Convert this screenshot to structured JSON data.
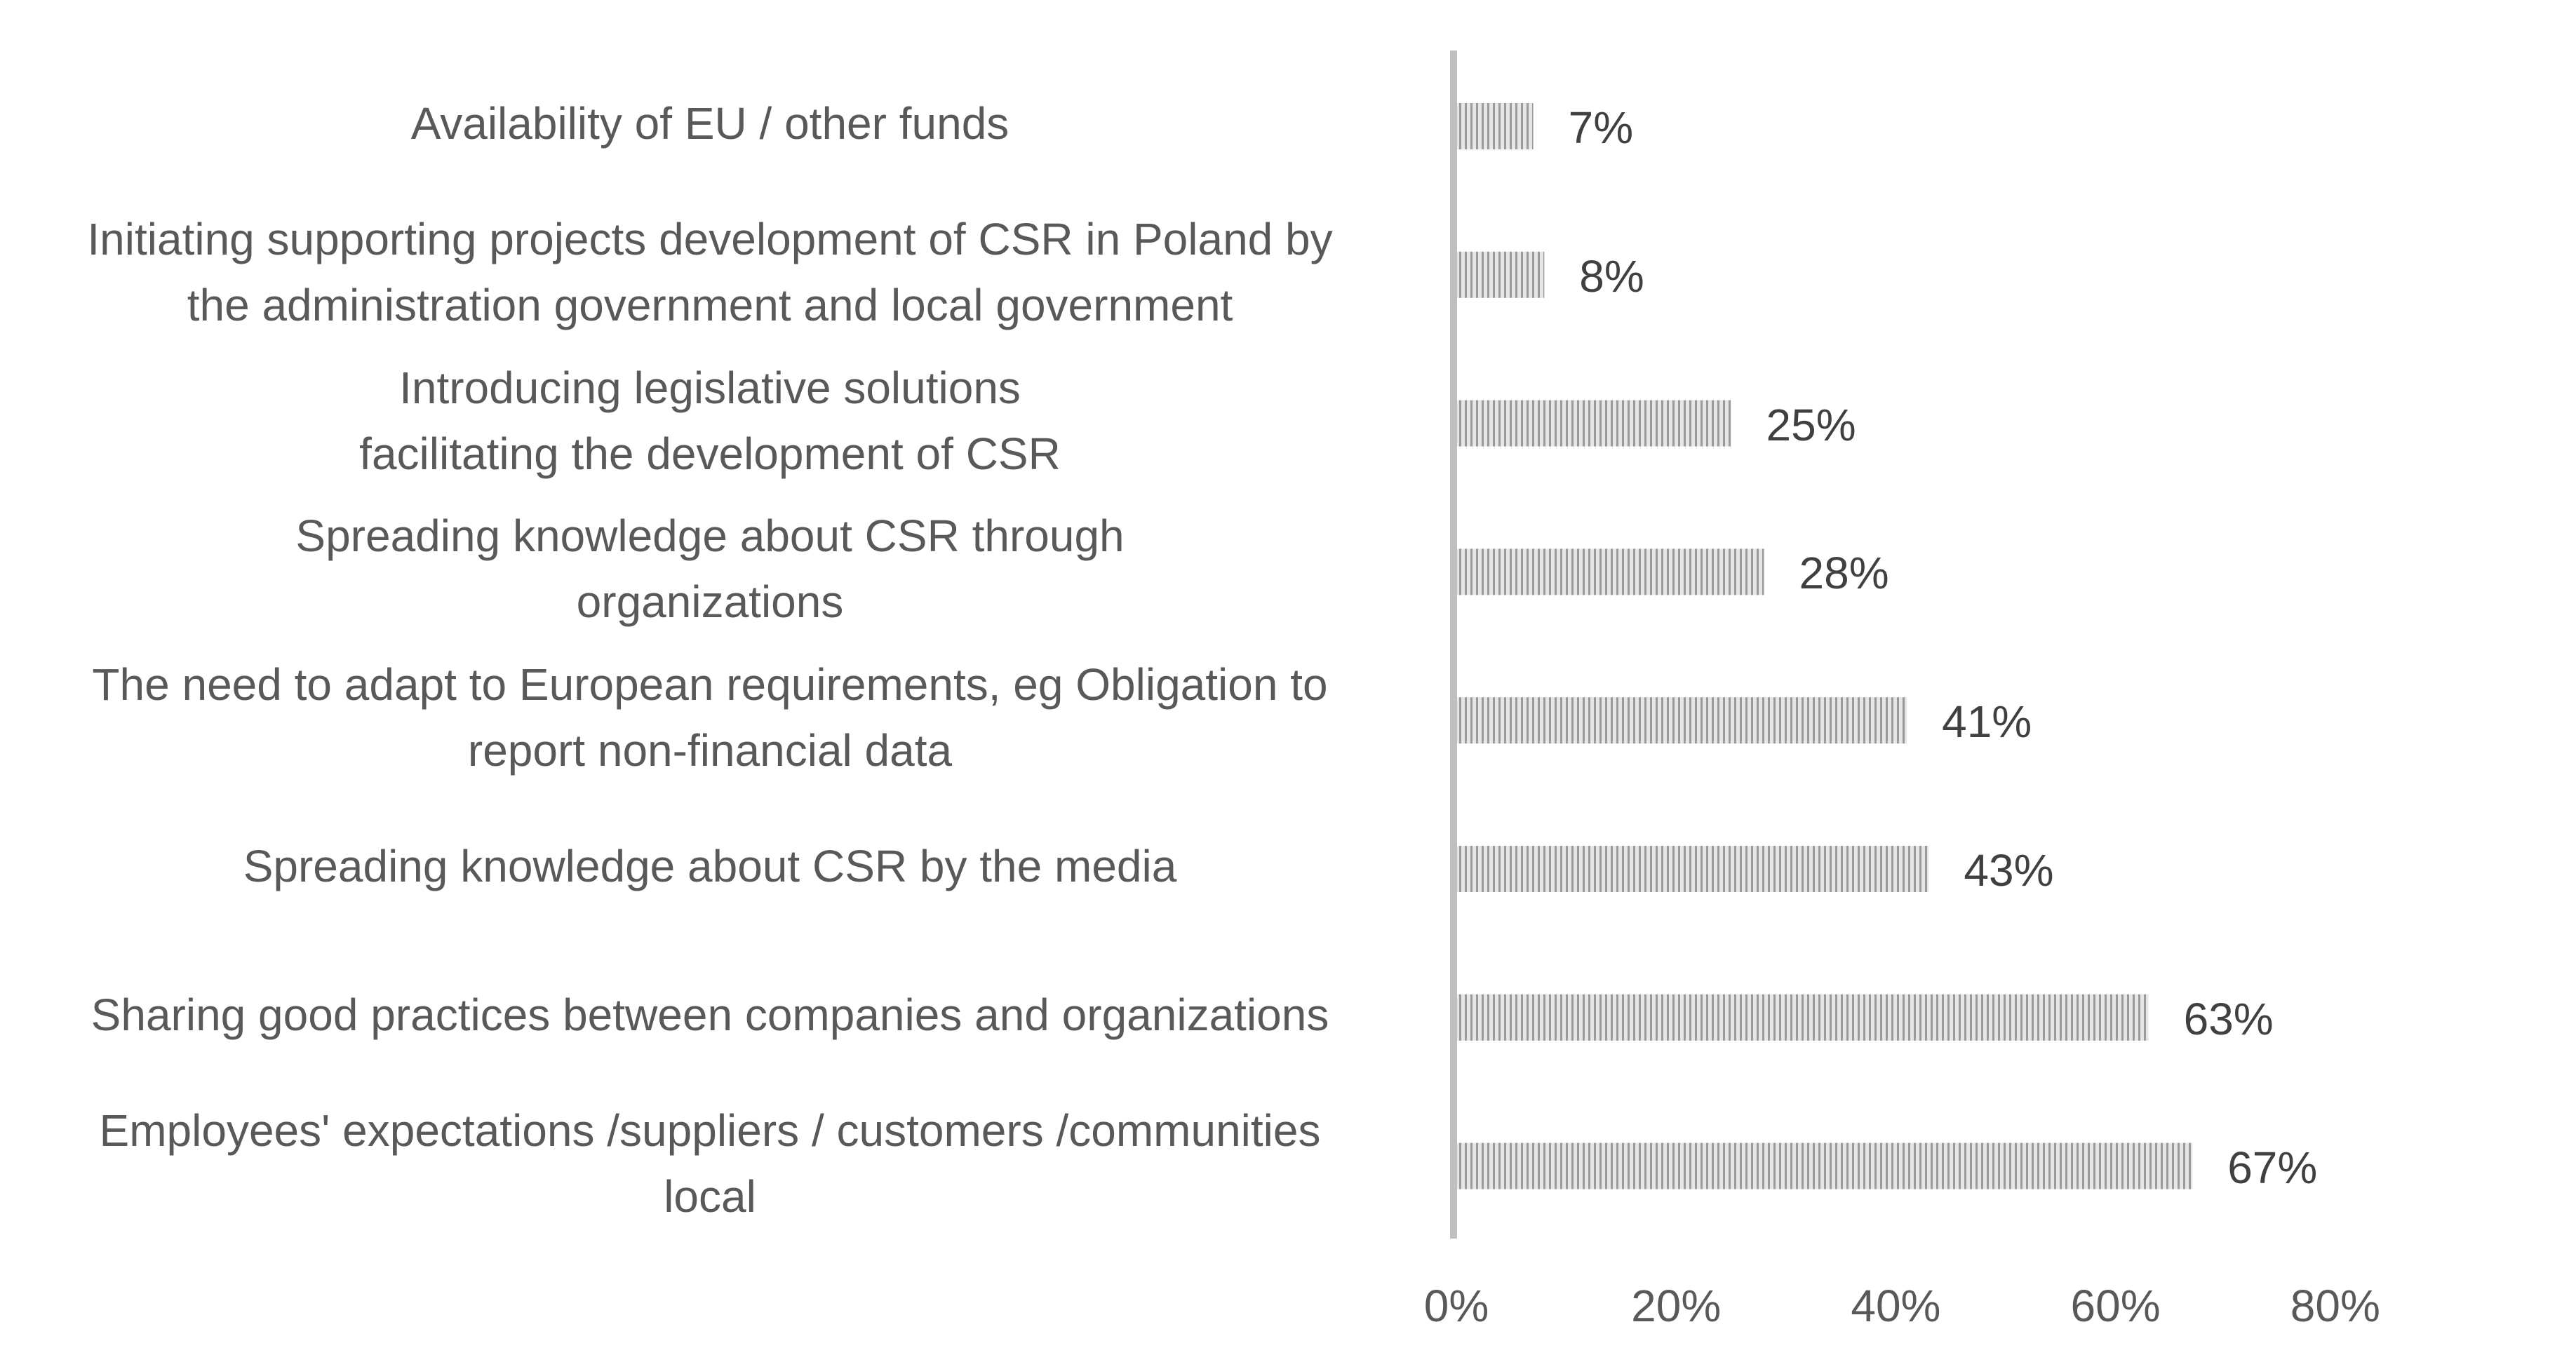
{
  "chart_data": {
    "type": "bar",
    "orientation": "horizontal",
    "categories": [
      "Availability of EU / other funds",
      "Initiating supporting projects development of CSR in Poland by the administration government and local government",
      "Introducing legislative solutions facilitating the development of CSR",
      "Spreading knowledge about CSR through organizations",
      "The need to adapt to European requirements, eg Obligation to report non-financial data",
      "Spreading knowledge about CSR by the media",
      "Sharing good practices between companies and organizations",
      "Employees' expectations /suppliers / customers /communities local"
    ],
    "category_lines": [
      [
        "Availability of EU / other funds"
      ],
      [
        "Initiating supporting projects development of CSR in Poland by",
        "the administration government and local government"
      ],
      [
        "Introducing legislative solutions",
        "facilitating the development of CSR"
      ],
      [
        "Spreading knowledge about CSR through",
        "organizations"
      ],
      [
        "The need to adapt to European requirements, eg Obligation to",
        "report non-financial data"
      ],
      [
        "Spreading knowledge about CSR by the media"
      ],
      [
        "Sharing good practices between companies and organizations"
      ],
      [
        "Employees' expectations /suppliers / customers /communities",
        "local"
      ]
    ],
    "values": [
      7,
      8,
      25,
      28,
      41,
      43,
      63,
      67
    ],
    "data_labels": [
      "7%",
      "8%",
      "25%",
      "28%",
      "41%",
      "43%",
      "63%",
      "67%"
    ],
    "x_ticks": [
      0,
      20,
      40,
      60,
      80
    ],
    "x_tick_labels": [
      "0%",
      "20%",
      "40%",
      "60%",
      "80%"
    ],
    "xlim": [
      0,
      80
    ],
    "title": "",
    "xlabel": "",
    "ylabel": "",
    "grid": false,
    "legend": "none",
    "colors": {
      "bar_base": "#e6e6e6",
      "bar_stripe": "#9a9a9a",
      "axis": "#bfbfbf",
      "category_text": "#595959",
      "value_text": "#404040"
    }
  }
}
